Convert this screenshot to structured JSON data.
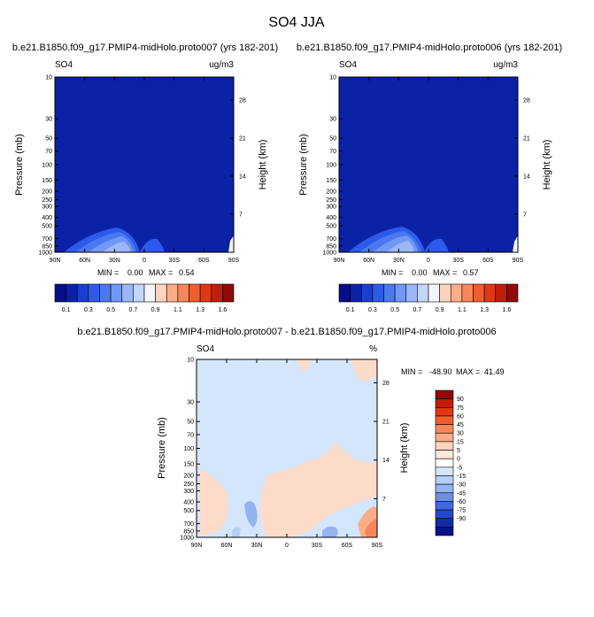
{
  "page_title": "SO4 JJA",
  "colors": {
    "deep_blue": "#0a22a6",
    "light_blue": "#d4e6fb",
    "light_orange": "#fcdcc8"
  },
  "chart_data": [
    {
      "type": "heatmap",
      "title": "b.e21.B1850.f09_g17.PMIP4-midHolo.proto007 (yrs 182-201)",
      "left_label": "SO4",
      "right_label": "ug/m3",
      "ylabel": "Pressure (mb)",
      "y2label": "Height (km)",
      "x_ticks": [
        "90N",
        "60N",
        "30N",
        "0",
        "30S",
        "60S",
        "90S"
      ],
      "y_ticks": [
        "10",
        "30",
        "50",
        "70",
        "100",
        "150",
        "200",
        "250",
        "300",
        "400",
        "500",
        "700",
        "850",
        "1000"
      ],
      "y2_ticks": [
        "28",
        "21",
        "14",
        "7"
      ],
      "stats": {
        "min_label": "MIN =",
        "min": "0.00",
        "max_label": "MAX =",
        "max": "0.54"
      },
      "colorbar": {
        "orientation": "horizontal",
        "colors": [
          "#050f8a",
          "#0a22a6",
          "#1a3fd0",
          "#2d5ae8",
          "#4a78f0",
          "#7198f4",
          "#9ab7f7",
          "#c3d6fa",
          "#f3f5fc",
          "#fcd3bc",
          "#fbad88",
          "#f88658",
          "#f25d30",
          "#e03715",
          "#c01e0c",
          "#8f0b08"
        ],
        "labels": [
          "0.1",
          "0.3",
          "0.5",
          "0.7",
          "0.9",
          "1.1",
          "1.3",
          "1.6"
        ]
      }
    },
    {
      "type": "heatmap",
      "title": "b.e21.B1850.f09_g17.PMIP4-midHolo.proto006 (yrs 182-201)",
      "left_label": "SO4",
      "right_label": "ug/m3",
      "ylabel": "Pressure (mb)",
      "y2label": "Height (km)",
      "x_ticks": [
        "90N",
        "60N",
        "30N",
        "0",
        "30S",
        "60S",
        "90S"
      ],
      "y_ticks": [
        "10",
        "30",
        "50",
        "70",
        "100",
        "150",
        "200",
        "250",
        "300",
        "400",
        "500",
        "700",
        "850",
        "1000"
      ],
      "y2_ticks": [
        "28",
        "21",
        "14",
        "7"
      ],
      "stats": {
        "min_label": "MIN =",
        "min": "0.00",
        "max_label": "MAX =",
        "max": "0.57"
      },
      "colorbar": {
        "orientation": "horizontal",
        "colors": [
          "#050f8a",
          "#0a22a6",
          "#1a3fd0",
          "#2d5ae8",
          "#4a78f0",
          "#7198f4",
          "#9ab7f7",
          "#c3d6fa",
          "#f3f5fc",
          "#fcd3bc",
          "#fbad88",
          "#f88658",
          "#f25d30",
          "#e03715",
          "#c01e0c",
          "#8f0b08"
        ],
        "labels": [
          "0.1",
          "0.3",
          "0.5",
          "0.7",
          "0.9",
          "1.1",
          "1.3",
          "1.6"
        ]
      }
    },
    {
      "type": "heatmap",
      "title": "b.e21.B1850.f09_g17.PMIP4-midHolo.proto007 - b.e21.B1850.f09_g17.PMIP4-midHolo.proto006",
      "left_label": "SO4",
      "right_label": "%",
      "ylabel": "Pressure (mb)",
      "y2label": "Height (km)",
      "x_ticks": [
        "90N",
        "60N",
        "30N",
        "0",
        "30S",
        "60S",
        "90S"
      ],
      "y_ticks": [
        "10",
        "30",
        "50",
        "70",
        "100",
        "150",
        "200",
        "250",
        "300",
        "400",
        "500",
        "700",
        "850",
        "1000"
      ],
      "y2_ticks": [
        "28",
        "21",
        "14",
        "7"
      ],
      "stats": {
        "min_label": "MIN =",
        "min": "-48.90",
        "max_label": "MAX =",
        "max": "41.49"
      },
      "colorbar": {
        "orientation": "vertical",
        "colors": [
          "#8f0b08",
          "#c01e0c",
          "#e03715",
          "#f25d30",
          "#f88658",
          "#fbad88",
          "#fcd3bc",
          "#fdeadc",
          "#ffffff",
          "#d4e6fb",
          "#b5cff6",
          "#93b3f1",
          "#6b8fe9",
          "#4169dd",
          "#2447c7",
          "#102aa8",
          "#061488"
        ],
        "labels": [
          "90",
          "75",
          "60",
          "45",
          "30",
          "15",
          "5",
          "0",
          "-5",
          "-15",
          "-30",
          "-45",
          "-60",
          "-75",
          "-90"
        ]
      }
    }
  ]
}
